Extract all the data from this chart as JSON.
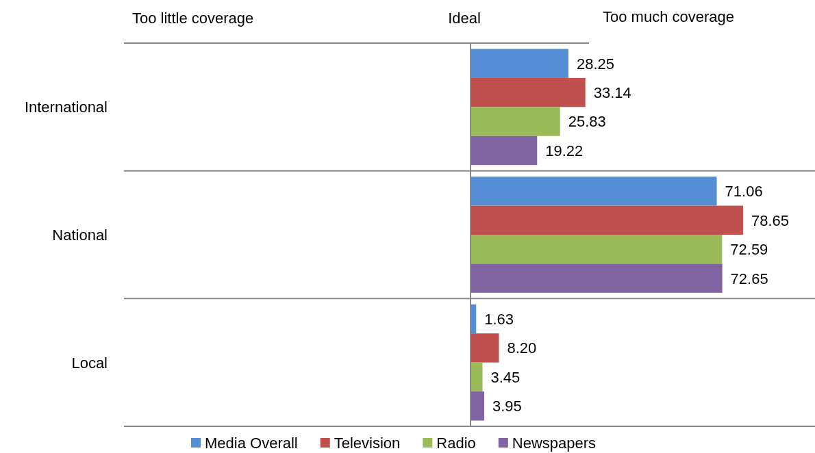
{
  "chart_data": {
    "type": "bar",
    "orientation": "horizontal",
    "categories": [
      "International",
      "National",
      "Local"
    ],
    "series": [
      {
        "name": "Media Overall",
        "color": "#558ed5",
        "values": [
          28.25,
          71.06,
          1.63
        ],
        "value_labels": [
          "28.25",
          "71.06",
          "1.63"
        ]
      },
      {
        "name": "Television",
        "color": "#c0504d",
        "values": [
          33.14,
          78.65,
          8.2
        ],
        "value_labels": [
          "33.14",
          "78.65",
          "8.20"
        ]
      },
      {
        "name": "Radio",
        "color": "#9bbb59",
        "values": [
          25.83,
          72.59,
          3.45
        ],
        "value_labels": [
          "25.83",
          "72.59",
          "3.45"
        ]
      },
      {
        "name": "Newspapers",
        "color": "#8064a2",
        "values": [
          19.22,
          72.65,
          3.95
        ],
        "value_labels": [
          "19.22",
          "72.65",
          "3.95"
        ]
      }
    ],
    "xlim": [
      -100,
      100
    ],
    "tick_labels": "y",
    "grid": "y",
    "legend": "bottom",
    "annotations": [
      "Too little coverage",
      "Ideal",
      "Too much coverage"
    ]
  }
}
